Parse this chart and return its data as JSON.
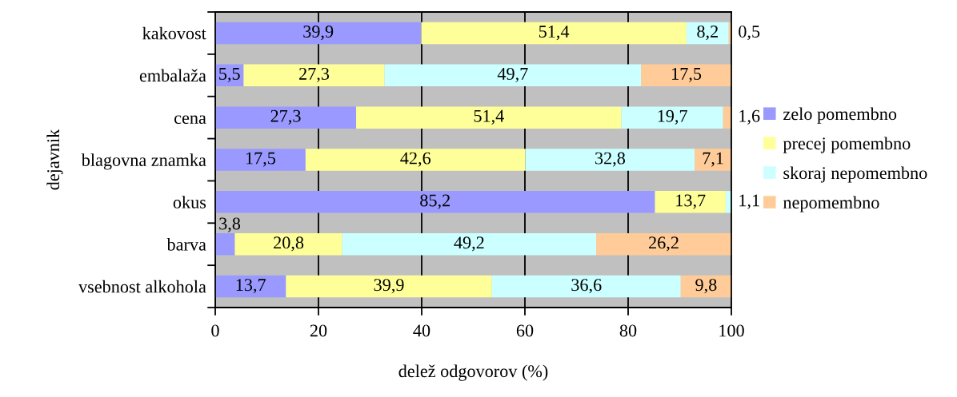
{
  "chart_data": {
    "type": "bar",
    "orientation": "horizontal",
    "stacked": true,
    "xlabel": "delež odgovorov (%)",
    "ylabel": "dejavnik",
    "categories": [
      "kakovost",
      "embalaža",
      "cena",
      "blagovna znamka",
      "okus",
      "barva",
      "vsebnost alkohola"
    ],
    "series": [
      {
        "name": "zelo pomembno",
        "color": "#9999ff",
        "values": [
          39.9,
          5.5,
          27.3,
          17.5,
          85.2,
          3.8,
          13.7
        ],
        "value_labels": [
          "39,9",
          "5,5",
          "27,3",
          "17,5",
          "85,2",
          "3,8",
          "13,7"
        ]
      },
      {
        "name": "precej pomembno",
        "color": "#ffff99",
        "values": [
          51.4,
          27.3,
          51.4,
          42.6,
          13.7,
          20.8,
          39.9
        ],
        "value_labels": [
          "51,4",
          "27,3",
          "51,4",
          "42,6",
          "13,7",
          "20,8",
          "39,9"
        ]
      },
      {
        "name": "skoraj nepomembno",
        "color": "#ccffff",
        "values": [
          8.2,
          49.7,
          19.7,
          32.8,
          1.1,
          49.2,
          36.6
        ],
        "value_labels": [
          "8,2",
          "49,7",
          "19,7",
          "32,8",
          "1,1",
          "49,2",
          "36,6"
        ]
      },
      {
        "name": "nepomembno",
        "color": "#ffcc99",
        "values": [
          0.5,
          17.5,
          1.6,
          7.1,
          null,
          26.2,
          9.8
        ],
        "value_labels": [
          "0,5",
          "17,5",
          "1,6",
          "7,1",
          null,
          "26,2",
          "9,8"
        ]
      }
    ],
    "xlim": [
      0,
      100
    ],
    "xticks": [
      0,
      20,
      40,
      60,
      80,
      100
    ],
    "grid": "x",
    "legend": "right"
  }
}
